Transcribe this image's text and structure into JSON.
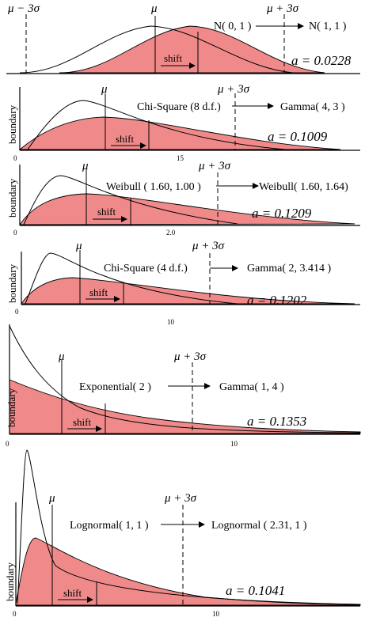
{
  "colors": {
    "shaded_fill": "#f08a8a",
    "ink": "#000000"
  },
  "panels": [
    {
      "id": "normal",
      "mu_left": "μ − 3σ",
      "mu": "μ",
      "mu3": "μ + 3σ",
      "from": "N( 0, 1 )",
      "to": "N( 1, 1 )",
      "shift": "shift",
      "a_value": "a = 0.0228",
      "ylabel": "",
      "tick": ""
    },
    {
      "id": "chisq8",
      "mu": "μ",
      "mu3": "μ + 3σ",
      "from": "Chi-Square (8 d.f.)",
      "to": "Gamma( 4, 3 )",
      "shift": "shift",
      "a_value": "a = 0.1009",
      "ylabel": "boundary",
      "tick0": "0",
      "tick": "15"
    },
    {
      "id": "weibull",
      "mu": "μ",
      "mu3": "μ + 3σ",
      "from": "Weibull ( 1.60, 1.00 )",
      "to": "Weibull( 1.60, 1.64)",
      "shift": "shift",
      "a_value": "a = 0.1209",
      "ylabel": "boundary",
      "tick0": "0",
      "tick": "2.0"
    },
    {
      "id": "chisq4",
      "mu": "μ",
      "mu3": "μ + 3σ",
      "from": "Chi-Square (4 d.f.)",
      "to": "Gamma( 2, 3.414 )",
      "shift": "shift",
      "a_value": "a = 0.1202",
      "ylabel": "boundary",
      "tick0": "0",
      "tick": "10"
    },
    {
      "id": "exponential",
      "mu": "μ",
      "mu3": "μ + 3σ",
      "from": "Exponential( 2 )",
      "to": "Gamma( 1, 4 )",
      "shift": "shift",
      "a_value": "a = 0.1353",
      "ylabel": "boundary",
      "tick0": "0",
      "tick": "10"
    },
    {
      "id": "lognormal",
      "mu": "μ",
      "mu3": "μ + 3σ",
      "from": "Lognormal( 1, 1 )",
      "to": "Lognormal ( 2.31, 1 )",
      "shift": "shift",
      "a_value": "a = 0.1041",
      "ylabel": "boundary",
      "tick0": "0",
      "tick": "10"
    }
  ]
}
